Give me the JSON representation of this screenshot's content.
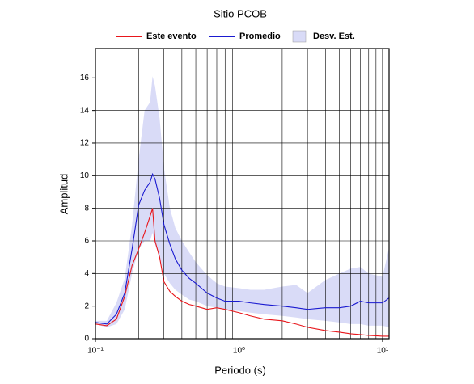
{
  "chart_data": {
    "type": "line",
    "title": "Sitio PCOB",
    "x_label": "Periodo (s)",
    "y_label": "Amplitud",
    "x_log": true,
    "grid": true,
    "legend": "top",
    "x": [
      0.1,
      0.12,
      0.14,
      0.16,
      0.18,
      0.2,
      0.22,
      0.24,
      0.25,
      0.26,
      0.28,
      0.3,
      0.33,
      0.36,
      0.4,
      0.45,
      0.5,
      0.6,
      0.7,
      0.8,
      1,
      1.2,
      1.5,
      2,
      2.5,
      3,
      4,
      5,
      6,
      7,
      8,
      10,
      11.1
    ],
    "series": [
      {
        "name": "Este evento",
        "color": "#e8161b",
        "values": [
          0.9,
          0.8,
          1.2,
          2.6,
          4.5,
          5.5,
          6.5,
          7.5,
          8.0,
          6.0,
          5.0,
          3.5,
          2.9,
          2.6,
          2.3,
          2.1,
          2.0,
          1.8,
          1.9,
          1.8,
          1.6,
          1.4,
          1.2,
          1.1,
          0.9,
          0.7,
          0.5,
          0.4,
          0.3,
          0.25,
          0.2,
          0.15,
          0.15
        ]
      },
      {
        "name": "Promedio",
        "color": "#1a1ad0",
        "values": [
          1.0,
          0.9,
          1.5,
          2.8,
          5.5,
          8.2,
          9.1,
          9.6,
          10.1,
          9.8,
          8.6,
          7.0,
          5.8,
          4.9,
          4.2,
          3.7,
          3.4,
          2.8,
          2.5,
          2.3,
          2.3,
          2.2,
          2.1,
          2.0,
          1.9,
          1.8,
          1.9,
          1.9,
          2.0,
          2.3,
          2.2,
          2.2,
          2.5
        ]
      },
      {
        "name": "Desv. Est.",
        "type": "band",
        "color": "#d9dbf7",
        "upper": [
          1.1,
          1.1,
          2.2,
          3.7,
          7,
          11,
          14,
          14.5,
          16.1,
          15.5,
          13.5,
          10.5,
          8,
          6.8,
          6,
          5.3,
          4.7,
          3.9,
          3.4,
          3.2,
          3.1,
          3.0,
          3.0,
          3.2,
          3.3,
          2.8,
          3.6,
          4.0,
          4.3,
          4.4,
          4.0,
          3.8,
          5.6
        ],
        "lower": [
          0.9,
          0.7,
          0.9,
          1.8,
          4,
          5.5,
          6,
          6,
          6.5,
          5.8,
          5,
          4,
          3.4,
          3,
          2.7,
          2.4,
          2.3,
          2.0,
          1.9,
          1.8,
          1.7,
          1.6,
          1.5,
          1.4,
          1.3,
          1.2,
          1.1,
          1.0,
          0.9,
          0.9,
          0.8,
          0.8,
          0.7
        ]
      }
    ],
    "xlim": [
      0.1,
      11.1
    ],
    "xticks": [
      {
        "value": 0.1,
        "label": "10⁻¹"
      },
      {
        "value": 1,
        "label": "10⁰"
      },
      {
        "value": 10,
        "label": "10¹"
      }
    ],
    "x_minor_ticks": [
      0.2,
      0.3,
      0.4,
      0.5,
      0.6,
      0.7,
      0.8,
      0.9,
      2,
      3,
      4,
      5,
      6,
      7,
      8,
      9
    ],
    "ylim": [
      0,
      17.8
    ],
    "yticks": [
      0,
      2,
      4,
      6,
      8,
      10,
      12,
      14,
      16
    ]
  }
}
